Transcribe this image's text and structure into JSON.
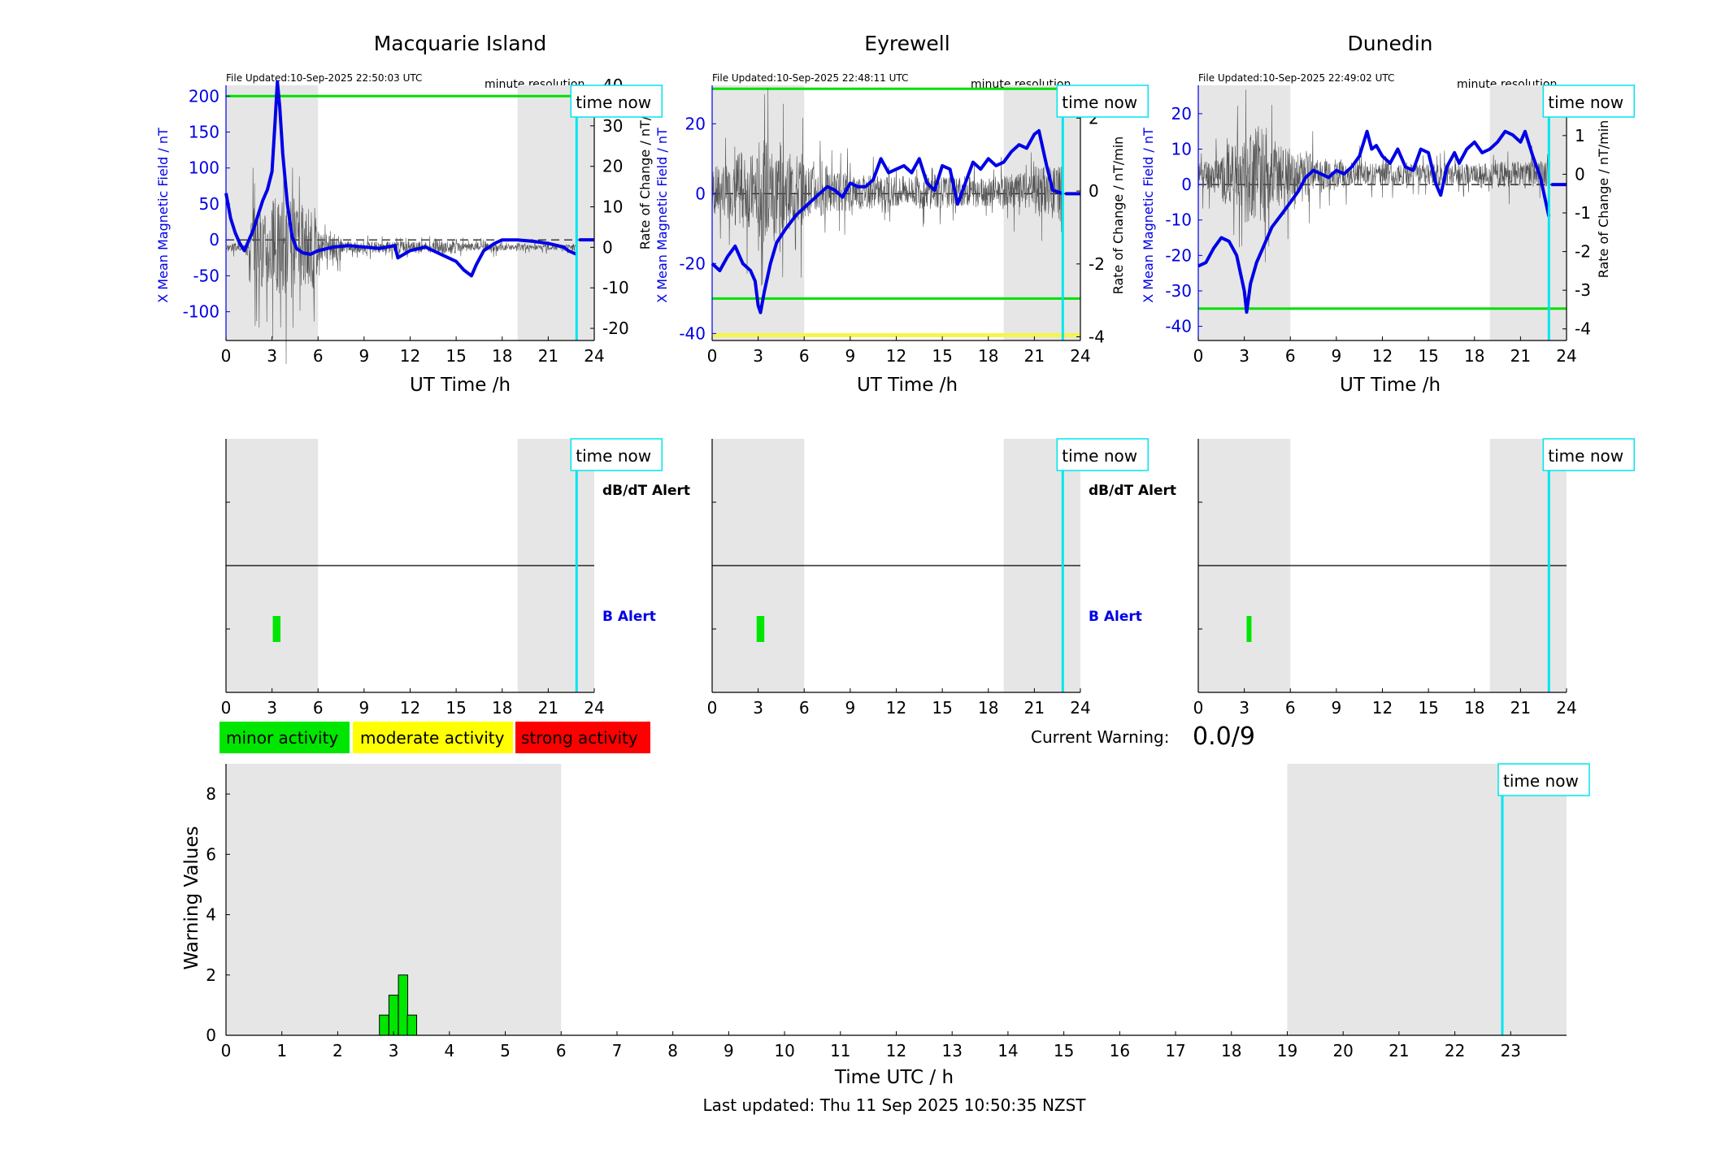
{
  "labels": {
    "time_now": "time now",
    "minute_resolution": "minute resolution",
    "x_axis_time": "UT Time /h",
    "y_left": "X Mean Magnetic Field / nT",
    "y_right": "Rate of Change / nT/min",
    "dbdt_alert": "dB/dT Alert",
    "b_alert": "B Alert",
    "current_warning_label": "Current Warning:",
    "current_warning_value": "0.0/9",
    "last_updated": "Last updated: Thu 11 Sep 2025 10:50:35 NZST"
  },
  "colors": {
    "field_line": "#0000e6",
    "threshold": "#00e000",
    "threshold_yellow": "#f5f54a",
    "time_now": "#00e5ee",
    "night_shade": "#e6e6e6",
    "minor": "#00e600",
    "moderate": "#ffff00",
    "strong": "#ff0000"
  },
  "legend": [
    {
      "label": "minor activity",
      "color": "#00e600"
    },
    {
      "label": "moderate activity",
      "color": "#ffff00"
    },
    {
      "label": "strong activity",
      "color": "#ff0000"
    }
  ],
  "chart_data": [
    {
      "type": "line",
      "title": "Macquarie Island",
      "file_updated": "File Updated:10-Sep-2025 22:50:03 UTC",
      "xlim": [
        0,
        24
      ],
      "xticks": [
        0,
        3,
        6,
        9,
        12,
        15,
        18,
        21,
        24
      ],
      "ylim": [
        -140,
        215
      ],
      "yticks": [
        -100,
        -50,
        0,
        50,
        100,
        150,
        200
      ],
      "y2lim": [
        -23,
        40
      ],
      "y2ticks": [
        -20,
        -10,
        0,
        10,
        20,
        30,
        40
      ],
      "shade": [
        [
          0,
          6
        ],
        [
          19,
          24
        ]
      ],
      "time_now": 22.85,
      "thresholds": [
        {
          "y": 200,
          "color": "green"
        }
      ],
      "field": {
        "x": [
          0,
          0.3,
          0.6,
          0.9,
          1.2,
          1.5,
          1.8,
          2.1,
          2.4,
          2.7,
          3.0,
          3.2,
          3.35,
          3.5,
          3.7,
          4.0,
          4.3,
          4.6,
          5.0,
          5.5,
          6.0,
          7,
          8,
          9,
          10,
          11,
          11.2,
          12,
          13,
          14,
          15,
          15.5,
          16,
          16.3,
          16.8,
          17.5,
          18,
          19,
          20,
          21,
          22,
          22.3,
          22.85
        ],
        "y": [
          65,
          30,
          10,
          -5,
          -15,
          0,
          15,
          35,
          55,
          70,
          95,
          165,
          220,
          185,
          120,
          50,
          5,
          -12,
          -18,
          -20,
          -15,
          -10,
          -8,
          -10,
          -12,
          -8,
          -25,
          -15,
          -10,
          -20,
          -30,
          -42,
          -50,
          -35,
          -15,
          -5,
          0,
          0,
          -2,
          -5,
          -10,
          -15,
          -20
        ]
      },
      "rate": {
        "amplitude": [
          1.5,
          14,
          18,
          14,
          5,
          2,
          2,
          2,
          2,
          2.5,
          1.5,
          1.5,
          1,
          1,
          1,
          1.2
        ],
        "seed": 3
      }
    },
    {
      "type": "line",
      "title": "Eyrewell",
      "file_updated": "File Updated:10-Sep-2025 22:48:11 UTC",
      "xlim": [
        0,
        24
      ],
      "xticks": [
        0,
        3,
        6,
        9,
        12,
        15,
        18,
        21,
        24
      ],
      "ylim": [
        -42,
        31
      ],
      "yticks": [
        -40,
        -20,
        0,
        20
      ],
      "y2lim": [
        -4.1,
        2.9
      ],
      "y2ticks": [
        -4,
        -2,
        0,
        2
      ],
      "shade": [
        [
          0,
          6
        ],
        [
          19,
          24
        ]
      ],
      "time_now": 22.85,
      "thresholds": [
        {
          "y": 30,
          "color": "green"
        },
        {
          "y": -30,
          "color": "green"
        },
        {
          "y": -40.5,
          "color": "yellow"
        }
      ],
      "field": {
        "x": [
          0,
          0.5,
          1,
          1.5,
          2,
          2.5,
          2.8,
          3.0,
          3.15,
          3.4,
          3.8,
          4.2,
          4.8,
          5.5,
          6,
          6.5,
          7,
          7.5,
          8,
          8.5,
          9,
          9.5,
          10,
          10.5,
          11,
          11.5,
          12,
          12.5,
          13,
          13.5,
          14,
          14.5,
          15,
          15.5,
          16,
          16.5,
          17,
          17.5,
          18,
          18.5,
          19,
          19.5,
          20,
          20.5,
          21,
          21.3,
          21.8,
          22.2,
          22.85
        ],
        "y": [
          -20,
          -22,
          -18,
          -15,
          -20,
          -22,
          -25,
          -32,
          -34,
          -28,
          -20,
          -14,
          -10,
          -6,
          -4,
          -2,
          0,
          2,
          1,
          -1,
          3,
          2,
          2,
          4,
          10,
          6,
          7,
          8,
          6,
          10,
          3,
          1,
          8,
          7,
          -3,
          3,
          9,
          7,
          10,
          8,
          9,
          12,
          14,
          13,
          17,
          18,
          8,
          1,
          0
        ]
      },
      "rate": {
        "amplitude": [
          1,
          1.5,
          2,
          1.5,
          1,
          0.8,
          0.7,
          0.6,
          0.6,
          0.7,
          0.6,
          0.6,
          0.6,
          0.7,
          1,
          1.3
        ],
        "seed": 7
      }
    },
    {
      "type": "line",
      "title": "Dunedin",
      "file_updated": "File Updated:10-Sep-2025 22:49:02 UTC",
      "xlim": [
        0,
        24
      ],
      "xticks": [
        0,
        3,
        6,
        9,
        12,
        15,
        18,
        21,
        24
      ],
      "ylim": [
        -44,
        28
      ],
      "yticks": [
        -40,
        -30,
        -20,
        -10,
        0,
        10,
        20
      ],
      "y2lim": [
        -4.3,
        2.3
      ],
      "y2ticks": [
        -4,
        -3,
        -2,
        -1,
        0,
        1,
        2
      ],
      "shade": [
        [
          0,
          6
        ],
        [
          19,
          24
        ]
      ],
      "time_now": 22.85,
      "thresholds": [
        {
          "y": -35,
          "color": "green"
        }
      ],
      "field": {
        "x": [
          0,
          0.5,
          1,
          1.5,
          2,
          2.5,
          3.0,
          3.15,
          3.4,
          3.8,
          4.2,
          4.8,
          5.5,
          6,
          6.5,
          7,
          7.5,
          8,
          8.5,
          9,
          9.5,
          10,
          10.5,
          11,
          11.3,
          11.6,
          12,
          12.5,
          13,
          13.5,
          14,
          14.5,
          15,
          15.5,
          15.8,
          16.2,
          16.7,
          17,
          17.5,
          18,
          18.5,
          19,
          19.5,
          20,
          20.5,
          21,
          21.3,
          21.8,
          22.3,
          22.85
        ],
        "y": [
          -23,
          -22,
          -18,
          -15,
          -16,
          -20,
          -30,
          -36,
          -28,
          -22,
          -18,
          -12,
          -8,
          -5,
          -2,
          2,
          4,
          3,
          2,
          4,
          3,
          5,
          8,
          15,
          10,
          11,
          8,
          6,
          10,
          5,
          4,
          10,
          9,
          0,
          -3,
          5,
          9,
          6,
          10,
          12,
          9,
          10,
          12,
          15,
          14,
          12,
          15,
          8,
          2,
          -9
        ]
      },
      "rate": {
        "amplitude": [
          0.6,
          1.2,
          1.8,
          1.3,
          0.8,
          0.6,
          0.5,
          0.4,
          0.4,
          0.4,
          0.4,
          0.4,
          0.4,
          0.5,
          0.5,
          0.5
        ],
        "seed": 11
      }
    },
    {
      "type": "bar",
      "subtype": "alert-timeline",
      "xlim": [
        0,
        24
      ],
      "xticks": [
        0,
        3,
        6,
        9,
        12,
        15,
        18,
        21,
        24
      ],
      "shade": [
        [
          0,
          6
        ],
        [
          19,
          24
        ]
      ],
      "time_now": 22.85,
      "rows": [
        "dB/dT Alert",
        "B Alert"
      ],
      "alerts": [
        {
          "row": "B Alert",
          "x0": 3.05,
          "x1": 3.55,
          "level": "minor"
        }
      ]
    },
    {
      "type": "bar",
      "subtype": "alert-timeline",
      "xlim": [
        0,
        24
      ],
      "xticks": [
        0,
        3,
        6,
        9,
        12,
        15,
        18,
        21,
        24
      ],
      "shade": [
        [
          0,
          6
        ],
        [
          19,
          24
        ]
      ],
      "time_now": 22.85,
      "rows": [
        "dB/dT Alert",
        "B Alert"
      ],
      "alerts": [
        {
          "row": "B Alert",
          "x0": 2.9,
          "x1": 3.4,
          "level": "minor"
        }
      ]
    },
    {
      "type": "bar",
      "subtype": "alert-timeline",
      "xlim": [
        0,
        24
      ],
      "xticks": [
        0,
        3,
        6,
        9,
        12,
        15,
        18,
        21,
        24
      ],
      "shade": [
        [
          0,
          6
        ],
        [
          19,
          24
        ]
      ],
      "time_now": 22.85,
      "rows": [
        "dB/dT Alert",
        "B Alert"
      ],
      "alerts": [
        {
          "row": "B Alert",
          "x0": 3.15,
          "x1": 3.45,
          "level": "minor"
        }
      ]
    },
    {
      "type": "bar",
      "xlabel": "Time UTC / h",
      "ylabel": "Warning Values",
      "xlim": [
        0,
        24
      ],
      "xticks": [
        0,
        1,
        2,
        3,
        4,
        5,
        6,
        7,
        8,
        9,
        10,
        11,
        12,
        13,
        14,
        15,
        16,
        17,
        18,
        19,
        20,
        21,
        22,
        23
      ],
      "ylim": [
        0,
        9
      ],
      "yticks": [
        0,
        2,
        4,
        6,
        8
      ],
      "shade": [
        [
          0,
          6
        ],
        [
          19,
          24
        ]
      ],
      "time_now": 22.85,
      "bars": [
        {
          "x": 2.83,
          "value": 0.67
        },
        {
          "x": 3.0,
          "value": 1.33
        },
        {
          "x": 3.17,
          "value": 2.0
        },
        {
          "x": 3.33,
          "value": 0.67
        }
      ]
    }
  ]
}
